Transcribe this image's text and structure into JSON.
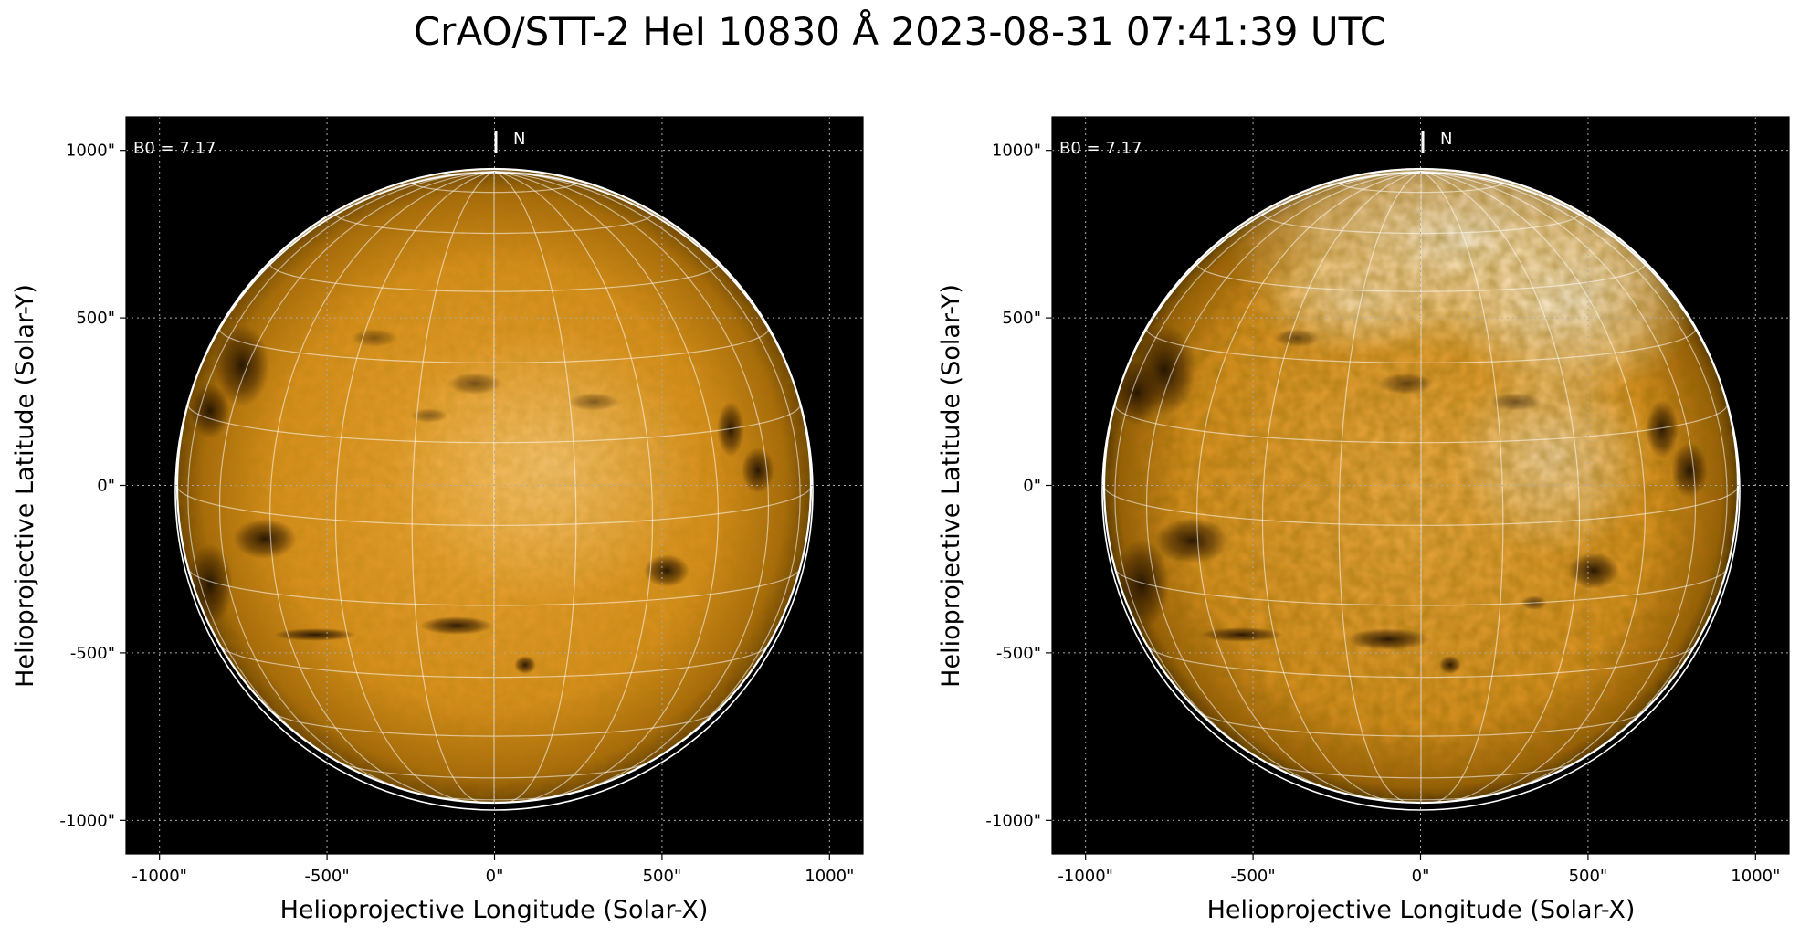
{
  "title": "CrAO/STT-2 HeI 10830 Å 2023-08-31 07:41:39 UTC",
  "colors": {
    "disk_base": "#d98e1a",
    "disk_dark": "#3a2000",
    "disk_bright": "#fff6e0",
    "background": "#000000",
    "grid": "#ffffff"
  },
  "panels": [
    {
      "id": "left",
      "b0_label": "B0 = 7.17",
      "north_label": "N",
      "xlabel": "Helioprojective Longitude (Solar-X)",
      "ylabel": "Helioprojective Latitude (Solar-Y)",
      "xticks": [
        "-1000\"",
        "-500\"",
        "0\"",
        "500\"",
        "1000\""
      ],
      "yticks": [
        "1000\"",
        "500\"",
        "0\"",
        "-500\"",
        "-1000\""
      ],
      "contrast": "normal"
    },
    {
      "id": "right",
      "b0_label": "B0 = 7.17",
      "north_label": "N",
      "xlabel": "Helioprojective Longitude (Solar-X)",
      "ylabel": "Helioprojective Latitude (Solar-Y)",
      "xticks": [
        "-1000\"",
        "-500\"",
        "0\"",
        "500\"",
        "1000\""
      ],
      "yticks": [
        "1000\"",
        "500\"",
        "0\"",
        "-500\"",
        "-1000\""
      ],
      "contrast": "enhanced"
    }
  ],
  "tick_values": [
    -1000,
    -500,
    0,
    500,
    1000
  ],
  "axis_range": [
    -1100,
    1100
  ]
}
